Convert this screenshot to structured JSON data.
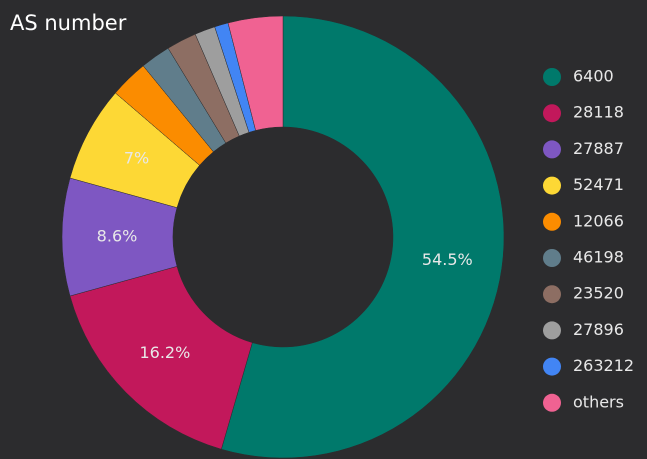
{
  "chart_data": {
    "type": "donut",
    "title": "AS number",
    "categories": [
      "6400",
      "28118",
      "27887",
      "52471",
      "12066",
      "46198",
      "23520",
      "27896",
      "263212",
      "others"
    ],
    "values": [
      54.5,
      16.2,
      8.6,
      7,
      2.8,
      2.2,
      2.2,
      1.5,
      1.0,
      4.0
    ],
    "value_labels": [
      "54.5%",
      "16.2%",
      "8.6%",
      "7%",
      null,
      null,
      null,
      null,
      null,
      null
    ],
    "colors": [
      "#00796b",
      "#c2185b",
      "#7e57c2",
      "#fdd835",
      "#fb8c00",
      "#607d8b",
      "#8d6e63",
      "#9e9e9e",
      "#4285f4",
      "#f06292"
    ],
    "legend": "right"
  }
}
